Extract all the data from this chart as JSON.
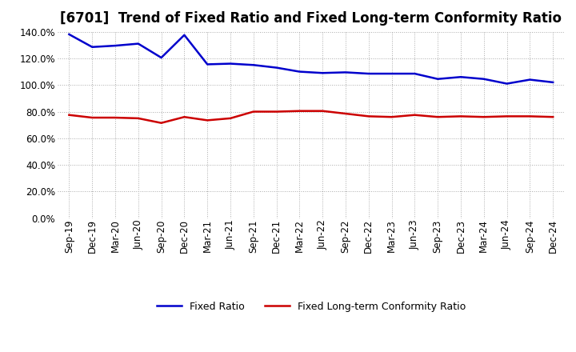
{
  "title": "[6701]  Trend of Fixed Ratio and Fixed Long-term Conformity Ratio",
  "x_labels": [
    "Sep-19",
    "Dec-19",
    "Mar-20",
    "Jun-20",
    "Sep-20",
    "Dec-20",
    "Mar-21",
    "Jun-21",
    "Sep-21",
    "Dec-21",
    "Mar-22",
    "Jun-22",
    "Sep-22",
    "Dec-22",
    "Mar-23",
    "Jun-23",
    "Sep-23",
    "Dec-23",
    "Mar-24",
    "Jun-24",
    "Sep-24",
    "Dec-24"
  ],
  "fixed_ratio": [
    138.0,
    128.5,
    129.5,
    131.0,
    120.5,
    137.5,
    115.5,
    116.0,
    115.0,
    113.0,
    110.0,
    109.0,
    109.5,
    108.5,
    108.5,
    108.5,
    104.5,
    106.0,
    104.5,
    101.0,
    104.0,
    102.0
  ],
  "fixed_lt_ratio": [
    77.5,
    75.5,
    75.5,
    75.0,
    71.5,
    76.0,
    73.5,
    75.0,
    80.0,
    80.0,
    80.5,
    80.5,
    78.5,
    76.5,
    76.0,
    77.5,
    76.0,
    76.5,
    76.0,
    76.5,
    76.5,
    76.0
  ],
  "fixed_ratio_color": "#0000cc",
  "fixed_lt_ratio_color": "#cc0000",
  "ylim": [
    0,
    140
  ],
  "yticks": [
    0,
    20,
    40,
    60,
    80,
    100,
    120,
    140
  ],
  "background_color": "#ffffff",
  "plot_background": "#ffffff",
  "grid_color": "#aaaaaa",
  "title_fontsize": 12,
  "tick_fontsize": 8.5,
  "legend_fixed": "Fixed Ratio",
  "legend_fixed_lt": "Fixed Long-term Conformity Ratio"
}
